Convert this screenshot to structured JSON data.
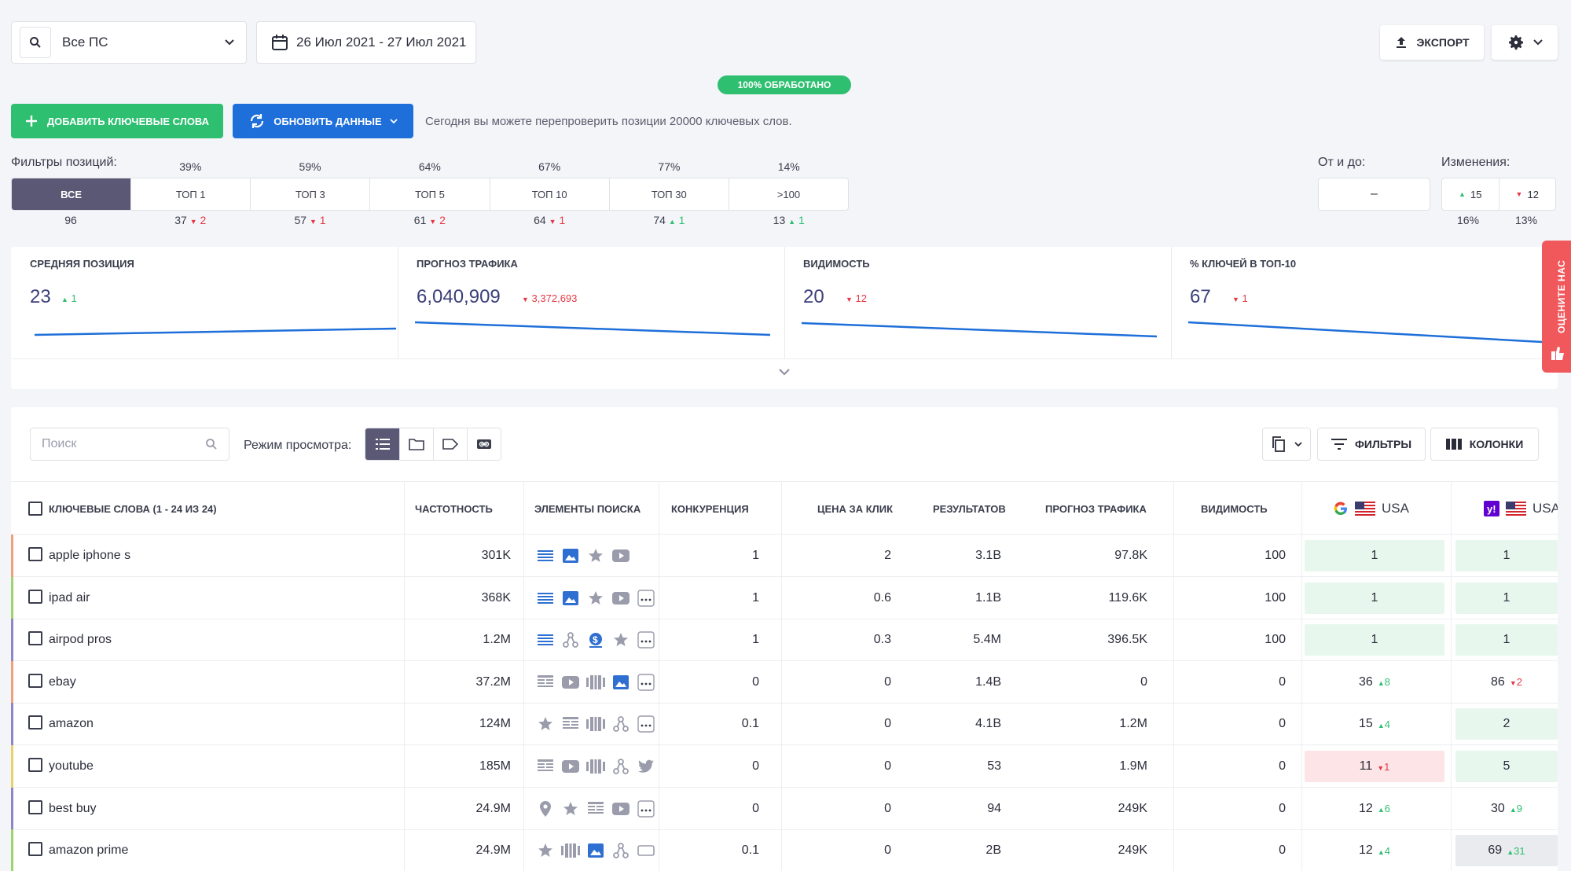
{
  "topbar": {
    "engine_select": "Все ПС",
    "date_range": "26 Июл 2021 - 27 Июл 2021",
    "export_label": "ЭКСПОРТ",
    "progress_label": "100% ОБРАБОТАНО"
  },
  "actions": {
    "add_keywords": "ДОБАВИТЬ КЛЮЧЕВЫЕ СЛОВА",
    "update_data": "ОБНОВИТЬ ДАННЫЕ",
    "note": "Сегодня вы можете перепроверить позиции 20000 ключевых слов."
  },
  "filters": {
    "label": "Фильтры позиций:",
    "segments": [
      {
        "label": "ВСЕ",
        "pct": "",
        "count": "96",
        "delta": "",
        "dir": ""
      },
      {
        "label": "ТОП 1",
        "pct": "39%",
        "count": "37",
        "delta": "2",
        "dir": "down"
      },
      {
        "label": "ТОП 3",
        "pct": "59%",
        "count": "57",
        "delta": "1",
        "dir": "down"
      },
      {
        "label": "ТОП 5",
        "pct": "64%",
        "count": "61",
        "delta": "2",
        "dir": "down"
      },
      {
        "label": "ТОП 10",
        "pct": "67%",
        "count": "64",
        "delta": "1",
        "dir": "down"
      },
      {
        "label": "ТОП 30",
        "pct": "77%",
        "count": "74",
        "delta": "1",
        "dir": "up"
      },
      {
        "label": ">100",
        "pct": "14%",
        "count": "13",
        "delta": "1",
        "dir": "up"
      }
    ],
    "range_label": "От и до:",
    "range_value": "–",
    "changes_label": "Изменения:",
    "changes_up": "15",
    "changes_down": "12",
    "changes_up_pct": "16%",
    "changes_down_pct": "13%"
  },
  "stats": [
    {
      "title": "СРЕДНЯЯ ПОЗИЦИЯ",
      "value": "23",
      "delta": "1",
      "dir": "up"
    },
    {
      "title": "ПРОГНОЗ ТРАФИКА",
      "value": "6,040,909",
      "delta": "3,372,693",
      "dir": "down"
    },
    {
      "title": "ВИДИМОСТЬ",
      "value": "20",
      "delta": "12",
      "dir": "down"
    },
    {
      "title": "% КЛЮЧЕЙ В ТОП-10",
      "value": "67",
      "delta": "1",
      "dir": "down"
    }
  ],
  "rate_tab": "ОЦЕНИТЕ НАС",
  "table_tools": {
    "search_placeholder": "Поиск",
    "view_mode_label": "Режим просмотра:",
    "filters_label": "ФИЛЬТРЫ",
    "columns_label": "КОЛОНКИ"
  },
  "table": {
    "headers": {
      "keywords": "КЛЮЧЕВЫЕ СЛОВА (1 - 24 ИЗ 24)",
      "frequency": "ЧАСТОТНОСТЬ",
      "serp": "ЭЛЕМЕНТЫ ПОИСКА",
      "competition": "КОНКУРЕНЦИЯ",
      "cpc": "ЦЕНА ЗА КЛИК",
      "results": "РЕЗУЛЬТАТОВ",
      "traffic": "ПРОГНОЗ ТРАФИКА",
      "visibility": "ВИДИМОСТЬ",
      "google_region": "USA",
      "yahoo_region": "USA"
    },
    "rows": [
      {
        "keyword": "apple iphone s",
        "freq": "301K",
        "comp": "1",
        "cpc": "2",
        "results": "3.1B",
        "traffic": "97.8K",
        "vis": "100",
        "g": "1",
        "g_delta": "",
        "g_dir": "",
        "g_bg": "green",
        "y": "1",
        "y_delta": "",
        "y_dir": "",
        "y_bg": "green",
        "bar": "#f0a07a",
        "icons": [
          "list",
          "image",
          "star",
          "video"
        ]
      },
      {
        "keyword": "ipad air",
        "freq": "368K",
        "comp": "1",
        "cpc": "0.6",
        "results": "1.1B",
        "traffic": "119.6K",
        "vis": "100",
        "g": "1",
        "g_delta": "",
        "g_dir": "",
        "g_bg": "green",
        "y": "1",
        "y_delta": "",
        "y_dir": "",
        "y_bg": "green",
        "bar": "#9bd46a",
        "icons": [
          "list",
          "image",
          "star",
          "video",
          "more"
        ]
      },
      {
        "keyword": "airpod pros",
        "freq": "1.2M",
        "comp": "1",
        "cpc": "0.3",
        "results": "5.4M",
        "traffic": "396.5K",
        "vis": "100",
        "g": "1",
        "g_delta": "",
        "g_dir": "",
        "g_bg": "green",
        "y": "1",
        "y_delta": "",
        "y_dir": "",
        "y_bg": "green",
        "bar": "#8f86c9",
        "icons": [
          "list",
          "sitelinks",
          "dollar",
          "star",
          "more"
        ]
      },
      {
        "keyword": "ebay",
        "freq": "37.2M",
        "comp": "0",
        "cpc": "0",
        "results": "1.4B",
        "traffic": "0",
        "vis": "0",
        "g": "36",
        "g_delta": "8",
        "g_dir": "up",
        "g_bg": "",
        "y": "86",
        "y_delta": "2",
        "y_dir": "down",
        "y_bg": "",
        "bar": "#f0a07a",
        "icons": [
          "news",
          "video",
          "carousel",
          "image",
          "more"
        ]
      },
      {
        "keyword": "amazon",
        "freq": "124M",
        "comp": "0.1",
        "cpc": "0",
        "results": "4.1B",
        "traffic": "1.2M",
        "vis": "0",
        "g": "15",
        "g_delta": "4",
        "g_dir": "up",
        "g_bg": "",
        "y": "2",
        "y_delta": "",
        "y_dir": "",
        "y_bg": "green",
        "bar": "#8f86c9",
        "icons": [
          "star",
          "news",
          "carousel",
          "sitelinks",
          "more"
        ]
      },
      {
        "keyword": "youtube",
        "freq": "185M",
        "comp": "0",
        "cpc": "0",
        "results": "53",
        "traffic": "1.9M",
        "vis": "0",
        "g": "11",
        "g_delta": "1",
        "g_dir": "down",
        "g_bg": "red",
        "y": "5",
        "y_delta": "",
        "y_dir": "",
        "y_bg": "green",
        "bar": "#e8d36a",
        "icons": [
          "news",
          "video",
          "carousel",
          "sitelinks",
          "twitter"
        ]
      },
      {
        "keyword": "best buy",
        "freq": "24.9M",
        "comp": "0",
        "cpc": "0",
        "results": "94",
        "traffic": "249K",
        "vis": "0",
        "g": "12",
        "g_delta": "6",
        "g_dir": "up",
        "g_bg": "",
        "y": "30",
        "y_delta": "9",
        "y_dir": "up",
        "y_bg": "",
        "bar": "#8f86c9",
        "icons": [
          "pin",
          "star",
          "news",
          "video",
          "more"
        ]
      },
      {
        "keyword": "amazon prime",
        "freq": "24.9M",
        "comp": "0.1",
        "cpc": "0",
        "results": "2B",
        "traffic": "249K",
        "vis": "0",
        "g": "12",
        "g_delta": "4",
        "g_dir": "up",
        "g_bg": "",
        "y": "69",
        "y_delta": "31",
        "y_dir": "up",
        "y_bg": "grey",
        "bar": "#9bd46a",
        "icons": [
          "star",
          "carousel",
          "image",
          "sitelinks",
          "rect"
        ]
      }
    ]
  },
  "colors": {
    "accent_green": "#2fbf71",
    "accent_blue": "#1e6fd9",
    "active_segment": "#5a5874",
    "down_red": "#e53945"
  }
}
